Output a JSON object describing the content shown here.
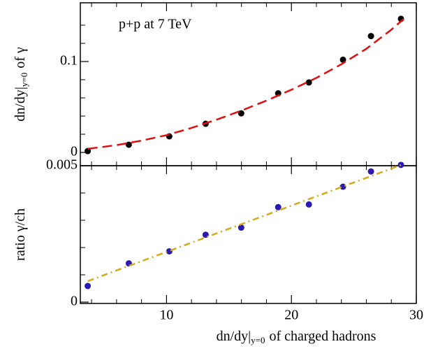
{
  "chart_data": [
    {
      "type": "scatter",
      "annotation": "p+p at 7 TeV",
      "ylabel": {
        "main": "dn/dy|",
        "sub": "y=0",
        "rest": "of γ"
      },
      "xlim": [
        3.1,
        30
      ],
      "ylim": [
        -0.0146,
        0.1646
      ],
      "yticks": [
        0,
        0.1
      ],
      "yminorticks": [
        0.02,
        0.04,
        0.06,
        0.08,
        0.12,
        0.14
      ],
      "series": [
        {
          "style": "points",
          "color": "#000000",
          "x": [
            3.69,
            6.98,
            10.22,
            13.13,
            15.98,
            18.94,
            21.4,
            24.13,
            26.37,
            28.77
          ],
          "values": [
            0.0015,
            0.0085,
            0.0177,
            0.0315,
            0.043,
            0.065,
            0.077,
            0.102,
            0.128,
            0.147
          ]
        },
        {
          "style": "dashed",
          "color": "#e01010",
          "x": [
            3.7,
            6,
            8,
            10,
            12,
            14,
            16,
            18,
            20,
            22,
            24,
            26,
            28,
            29
          ],
          "values": [
            0.004,
            0.008,
            0.013,
            0.019,
            0.027,
            0.036,
            0.046,
            0.057,
            0.069,
            0.082,
            0.097,
            0.114,
            0.135,
            0.147
          ]
        }
      ]
    },
    {
      "type": "scatter",
      "ylabel": {
        "main": "ratio  γ/ch"
      },
      "xlabel": {
        "main": "dn/dy|",
        "sub": "y=0",
        "rest": "of charged hadrons"
      },
      "xlim": [
        3.1,
        30
      ],
      "ylim": [
        -5e-05,
        0.005
      ],
      "xticks": [
        10,
        20,
        30
      ],
      "xminorticks": [
        4,
        6,
        8,
        12,
        14,
        16,
        18,
        22,
        24,
        26,
        28
      ],
      "yticks": [
        0,
        0.005
      ],
      "yminorticks": [
        0.001,
        0.002,
        0.003,
        0.004
      ],
      "series": [
        {
          "style": "points",
          "color": "#2a1ab0",
          "x": [
            3.69,
            6.98,
            10.22,
            13.13,
            15.98,
            18.94,
            21.4,
            24.13,
            26.37,
            28.77
          ],
          "values": [
            0.00059,
            0.00142,
            0.00186,
            0.00247,
            0.00273,
            0.00348,
            0.00358,
            0.00423,
            0.00479,
            0.00503
          ]
        },
        {
          "style": "dashdot",
          "color": "#d4aa1a",
          "x": [
            3.7,
            28.8
          ],
          "values": [
            0.00077,
            0.00503
          ]
        }
      ]
    }
  ]
}
